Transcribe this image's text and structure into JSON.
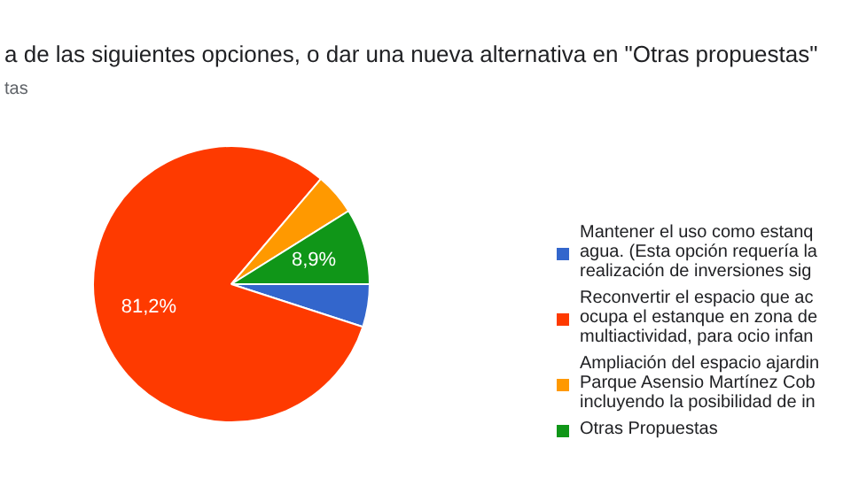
{
  "chart_data": {
    "type": "pie",
    "title": "a de las siguientes opciones, o dar una nueva alternativa en \"Otras propuestas\"",
    "subtitle": "tas",
    "categories": [
      "Mantener el uso como estanq agua. (Esta opción requería la realización de inversiones sig",
      "Reconvertir el espacio que ac ocupa el estanque en zona de multiactividad, para ocio infan",
      "Ampliación del espacio ajardin Parque Asensio Martínez Cob incluyendo la posibilidad de in",
      "Otras Propuestas"
    ],
    "values": [
      5.0,
      81.2,
      4.9,
      8.9
    ],
    "colors": [
      "#3366cc",
      "#fe3a00",
      "#ff9900",
      "#109618"
    ],
    "value_labels": [
      null,
      "81,2%",
      null,
      "8,9%"
    ],
    "legend": "right"
  }
}
